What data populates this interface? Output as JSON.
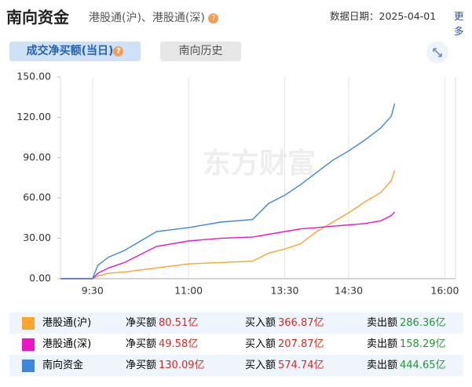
{
  "header": {
    "title": "南向资金",
    "subtitle": "港股通(沪)、港股通(深)",
    "date_label": "数据日期：2025-04-01",
    "more": "更多"
  },
  "tabs": [
    "成交净买额(当日)",
    "南向历史"
  ],
  "watermark": "东方财富",
  "chart_data": {
    "type": "line",
    "x": [
      "9:00",
      "9:30",
      "9:35",
      "9:45",
      "10:00",
      "10:30",
      "11:00",
      "11:30",
      "12:00",
      "13:15",
      "13:30",
      "13:45",
      "14:00",
      "14:15",
      "14:30",
      "14:45",
      "15:00",
      "15:10",
      "15:13"
    ],
    "xlim": [
      "9:00",
      "16:10"
    ],
    "xticks": [
      "9:30",
      "11:00",
      "13:30",
      "14:30",
      "16:00"
    ],
    "ylim": [
      0,
      150
    ],
    "yticks": [
      {
        "value": 0,
        "label": "0.00"
      },
      {
        "value": 30,
        "label": "30.00"
      },
      {
        "value": 60,
        "label": "60.00"
      },
      {
        "value": 90,
        "label": "90.00"
      },
      {
        "value": 120,
        "label": "120.00"
      },
      {
        "value": 150,
        "label": "150.00"
      }
    ],
    "grid": true,
    "series": [
      {
        "name": "港股通(沪)",
        "color": "#f7a52c",
        "values": [
          0,
          0,
          2,
          4,
          5,
          8,
          11,
          12,
          13,
          19,
          22,
          26,
          35,
          42,
          49,
          57,
          64,
          73,
          80.51
        ]
      },
      {
        "name": "港股通(深)",
        "color": "#ee14c8",
        "values": [
          0,
          0,
          4,
          8,
          12,
          24,
          28,
          30,
          31,
          33,
          35,
          37,
          38,
          39,
          40,
          41,
          43,
          47,
          49.58
        ]
      },
      {
        "name": "南向资金",
        "color": "#3d86dc",
        "values": [
          0,
          0,
          10,
          16,
          21,
          35,
          38,
          42,
          44,
          56,
          62,
          70,
          79,
          88,
          95,
          103,
          112,
          121,
          130.09
        ]
      }
    ]
  },
  "summary": [
    {
      "net_label": "净买额",
      "net": "80.51亿",
      "buy_label": "买入额",
      "buy": "366.87亿",
      "sell_label": "卖出额",
      "sell": "286.36亿"
    },
    {
      "net_label": "净买额",
      "net": "49.58亿",
      "buy_label": "买入额",
      "buy": "207.87亿",
      "sell_label": "卖出额",
      "sell": "158.29亿"
    },
    {
      "net_label": "净买额",
      "net": "130.09亿",
      "buy_label": "买入额",
      "buy": "574.74亿",
      "sell_label": "卖出额",
      "sell": "444.65亿"
    }
  ]
}
